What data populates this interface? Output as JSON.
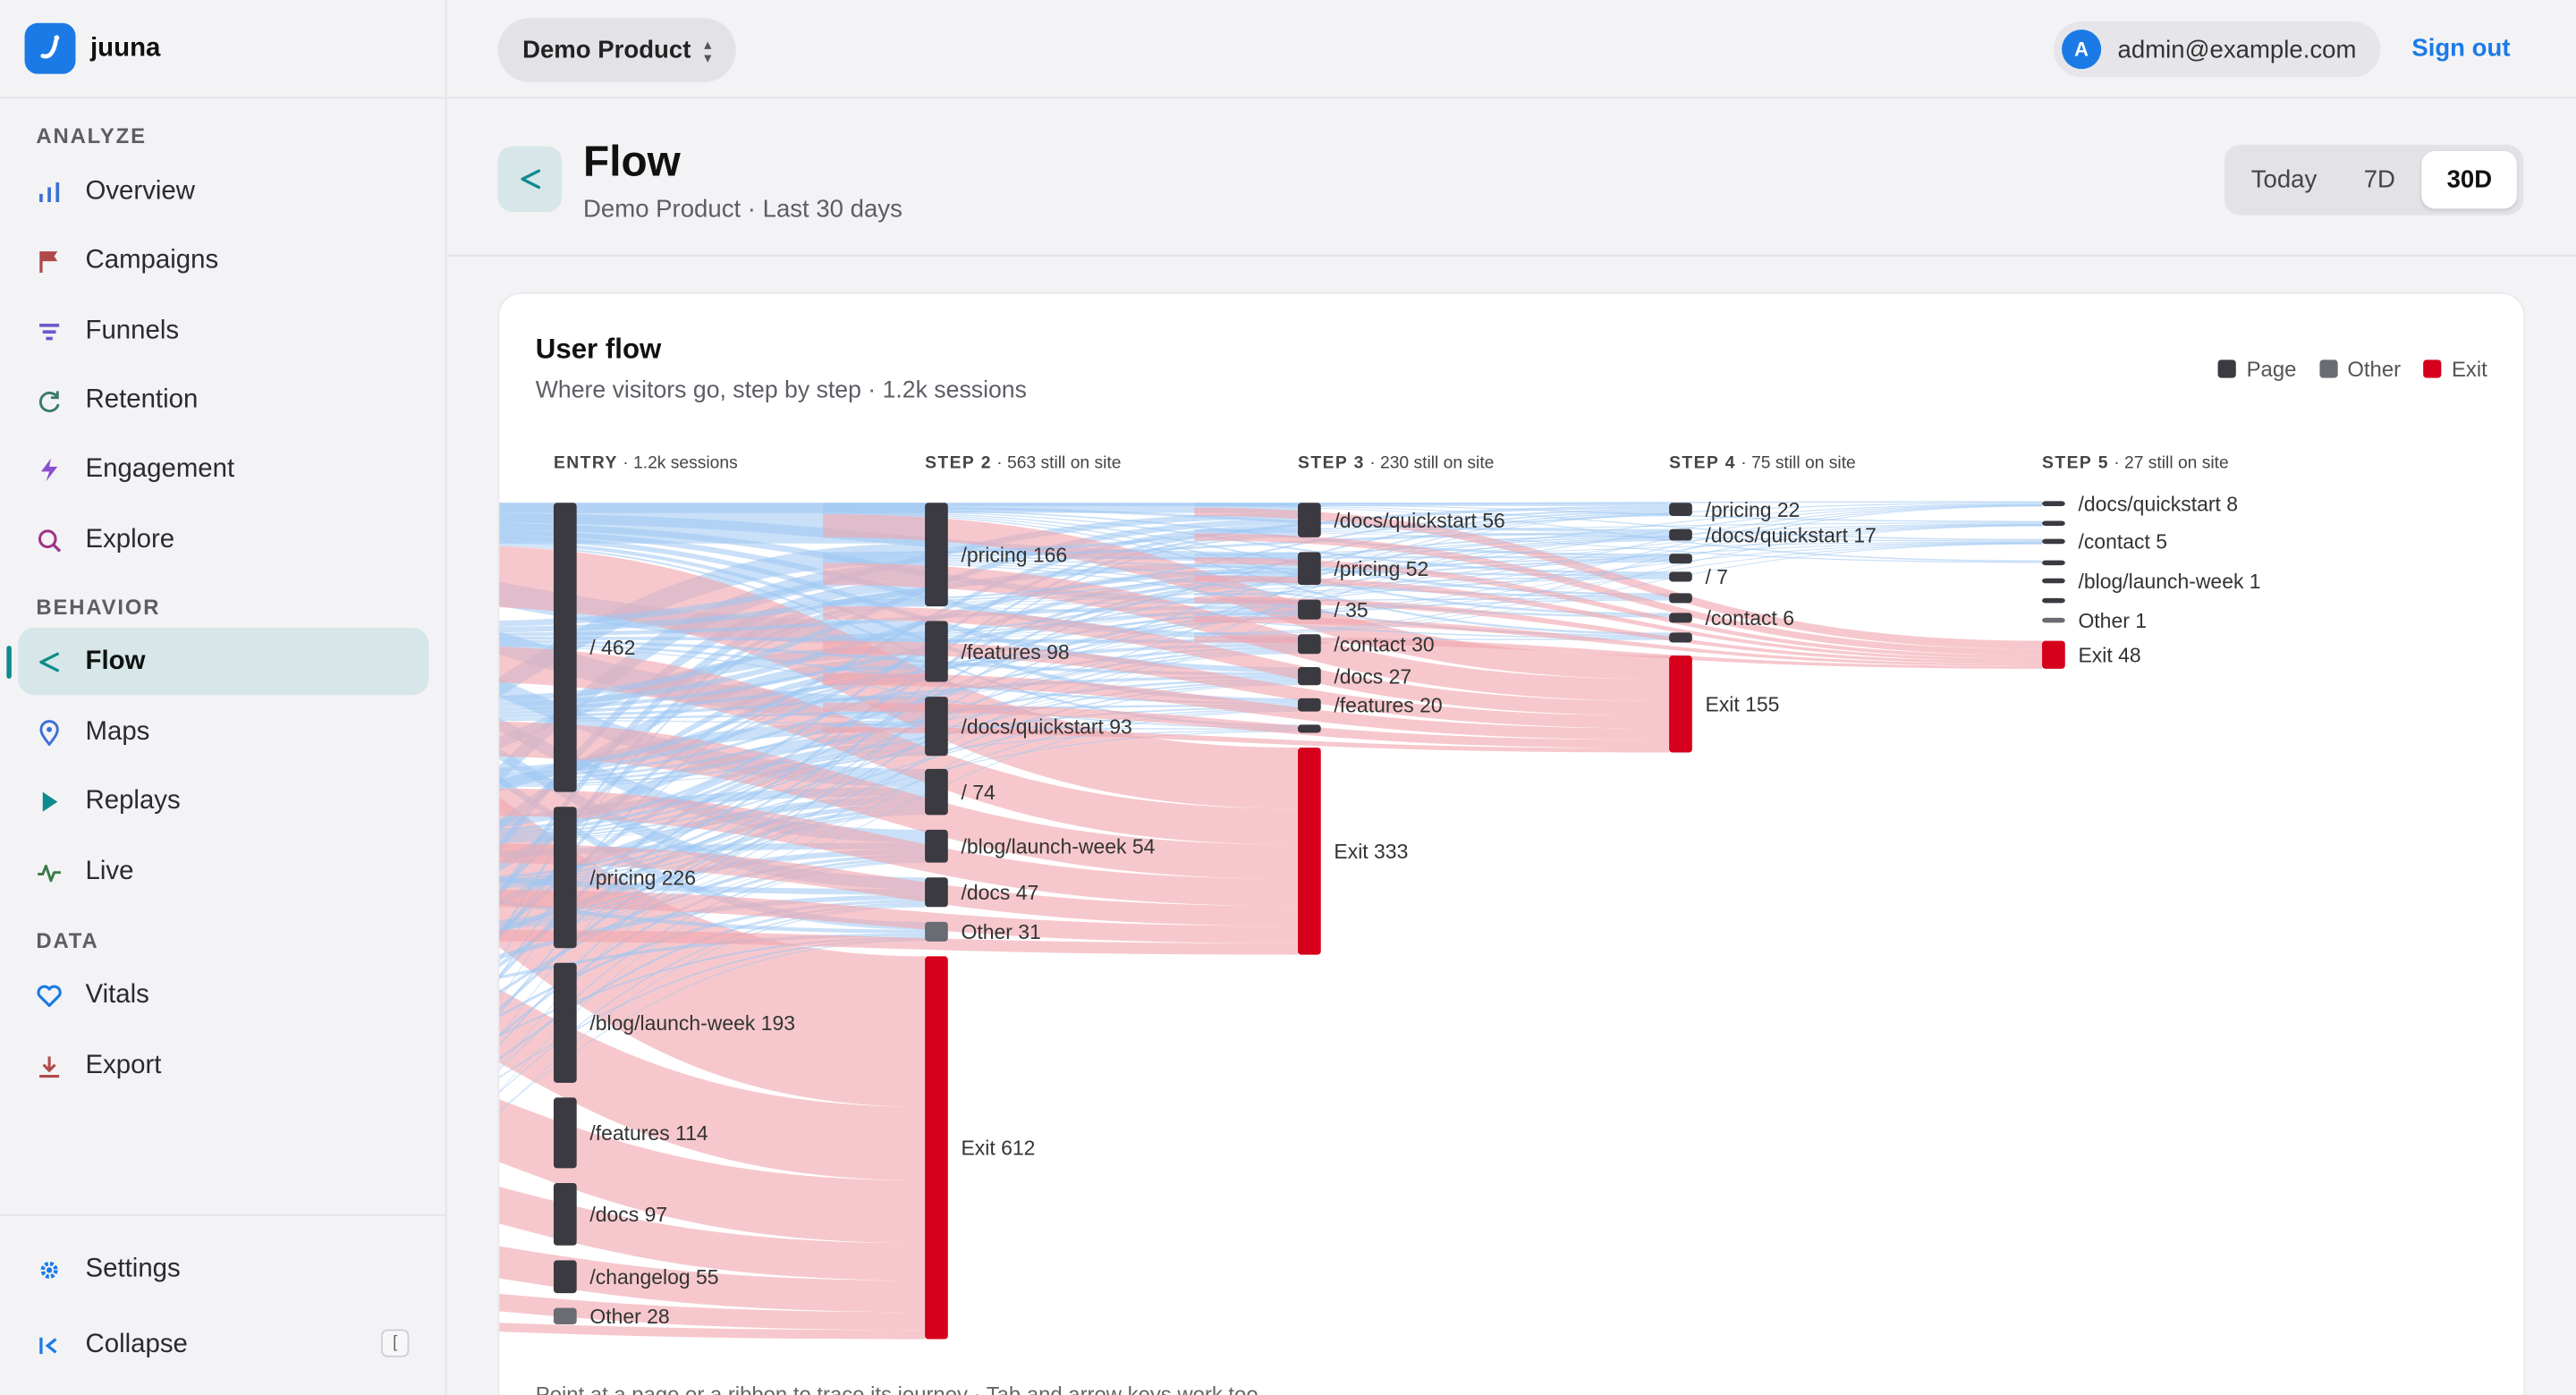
{
  "app": {
    "name": "juuna"
  },
  "sidebar": {
    "sections": {
      "analyze": "ANALYZE",
      "behavior": "BEHAVIOR",
      "data": "DATA"
    },
    "items": [
      {
        "label": "Overview",
        "icon": "bar-chart-icon"
      },
      {
        "label": "Campaigns",
        "icon": "flag-icon"
      },
      {
        "label": "Funnels",
        "icon": "funnel-icon"
      },
      {
        "label": "Retention",
        "icon": "refresh-icon"
      },
      {
        "label": "Engagement",
        "icon": "bolt-icon"
      },
      {
        "label": "Explore",
        "icon": "search-icon"
      },
      {
        "label": "Flow",
        "icon": "share-icon",
        "active": true
      },
      {
        "label": "Maps",
        "icon": "pin-icon"
      },
      {
        "label": "Replays",
        "icon": "play-icon"
      },
      {
        "label": "Live",
        "icon": "pulse-icon"
      },
      {
        "label": "Vitals",
        "icon": "heart-icon"
      },
      {
        "label": "Export",
        "icon": "download-icon"
      }
    ],
    "settings": "Settings",
    "collapse": "Collapse",
    "collapse_key": "["
  },
  "topbar": {
    "product": "Demo Product",
    "user_initial": "A",
    "user_email": "admin@example.com",
    "sign_out": "Sign out"
  },
  "page": {
    "title": "Flow",
    "subtitle": "Demo Product · Last 30 days",
    "ranges": [
      "Today",
      "7D",
      "30D"
    ],
    "selected_range": "30D"
  },
  "card": {
    "title": "User flow",
    "subtitle": "Where visitors go, step by step · 1.2k sessions",
    "legend": [
      {
        "label": "Page",
        "color": "#3a3a40"
      },
      {
        "label": "Other",
        "color": "#6b6b73"
      },
      {
        "label": "Exit",
        "color": "#d6001c"
      }
    ],
    "hint": "Point at a page or a ribbon to trace its journey · Tab and arrow keys work too"
  },
  "chart_data": {
    "type": "sankey",
    "columns": [
      {
        "step": "ENTRY",
        "note": "· 1.2k sessions",
        "nodes": [
          {
            "label": "/",
            "value": 462
          },
          {
            "label": "/pricing",
            "value": 226
          },
          {
            "label": "/blog/launch-week",
            "value": 193
          },
          {
            "label": "/features",
            "value": 114
          },
          {
            "label": "/docs",
            "value": 97
          },
          {
            "label": "/changelog",
            "value": 55
          },
          {
            "label": "Other",
            "value": 28,
            "kind": "other"
          }
        ]
      },
      {
        "step": "STEP 2",
        "note": "· 563 still on site",
        "nodes": [
          {
            "label": "/pricing",
            "value": 166
          },
          {
            "label": "/features",
            "value": 98
          },
          {
            "label": "/docs/quickstart",
            "value": 93
          },
          {
            "label": "/",
            "value": 74
          },
          {
            "label": "/blog/launch-week",
            "value": 54
          },
          {
            "label": "/docs",
            "value": 47
          },
          {
            "label": "Other",
            "value": 31,
            "kind": "other"
          },
          {
            "label": "Exit",
            "value": 612,
            "kind": "exit"
          }
        ]
      },
      {
        "step": "STEP 3",
        "note": "· 230 still on site",
        "nodes": [
          {
            "label": "/docs/quickstart",
            "value": 56
          },
          {
            "label": "/pricing",
            "value": 52
          },
          {
            "label": "/",
            "value": 35
          },
          {
            "label": "/contact",
            "value": 30
          },
          {
            "label": "/docs",
            "value": 27
          },
          {
            "label": "/features",
            "value": 20
          },
          {
            "label": "",
            "value": 10
          },
          {
            "label": "Exit",
            "value": 333,
            "kind": "exit"
          }
        ]
      },
      {
        "step": "STEP 4",
        "note": "· 75 still on site",
        "nodes": [
          {
            "label": "/pricing",
            "value": 22
          },
          {
            "label": "/docs/quickstart",
            "value": 17
          },
          {
            "label": "",
            "value": 9
          },
          {
            "label": "/",
            "value": 7
          },
          {
            "label": "",
            "value": 7
          },
          {
            "label": "/contact",
            "value": 6
          },
          {
            "label": "",
            "value": 7
          },
          {
            "label": "Exit",
            "value": 155,
            "kind": "exit"
          }
        ]
      },
      {
        "step": "STEP 5",
        "note": "· 27 still on site",
        "nodes": [
          {
            "label": "/docs/quickstart",
            "value": 8
          },
          {
            "label": "",
            "value": 5
          },
          {
            "label": "/contact",
            "value": 5
          },
          {
            "label": "",
            "value": 4
          },
          {
            "label": "/blog/launch-week",
            "value": 1
          },
          {
            "label": "",
            "value": 3
          },
          {
            "label": "Other",
            "value": 1,
            "kind": "other"
          },
          {
            "label": "Exit",
            "value": 48,
            "kind": "exit"
          }
        ]
      }
    ],
    "colors": {
      "page": "#3a3a40",
      "other": "#6b6b73",
      "exit": "#d6001c",
      "link_page": "#9cc6f2",
      "link_exit": "#f0a6ae"
    }
  }
}
